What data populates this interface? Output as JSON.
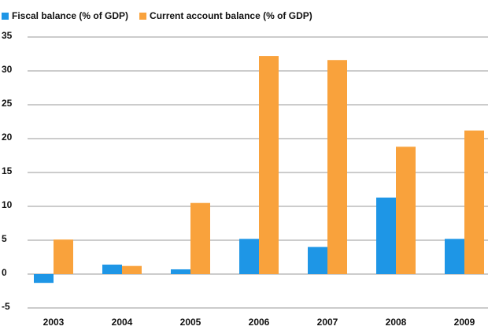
{
  "chart_data": {
    "type": "bar",
    "categories": [
      "2003",
      "2004",
      "2005",
      "2006",
      "2007",
      "2008",
      "2009"
    ],
    "series": [
      {
        "name": "Fiscal balance (% of GDP)",
        "color": "#1e96e6",
        "values": [
          -1.3,
          1.4,
          0.7,
          5.2,
          4.0,
          11.3,
          5.2
        ]
      },
      {
        "name": "Current account balance (% of GDP)",
        "color": "#f9a23c",
        "values": [
          5.1,
          1.2,
          10.5,
          32.2,
          31.6,
          18.8,
          21.2
        ]
      }
    ],
    "ylim": [
      -5,
      35
    ],
    "yticks": [
      -5,
      0,
      5,
      10,
      15,
      20,
      25,
      30,
      35
    ],
    "grid": true,
    "legend": "top-left"
  }
}
